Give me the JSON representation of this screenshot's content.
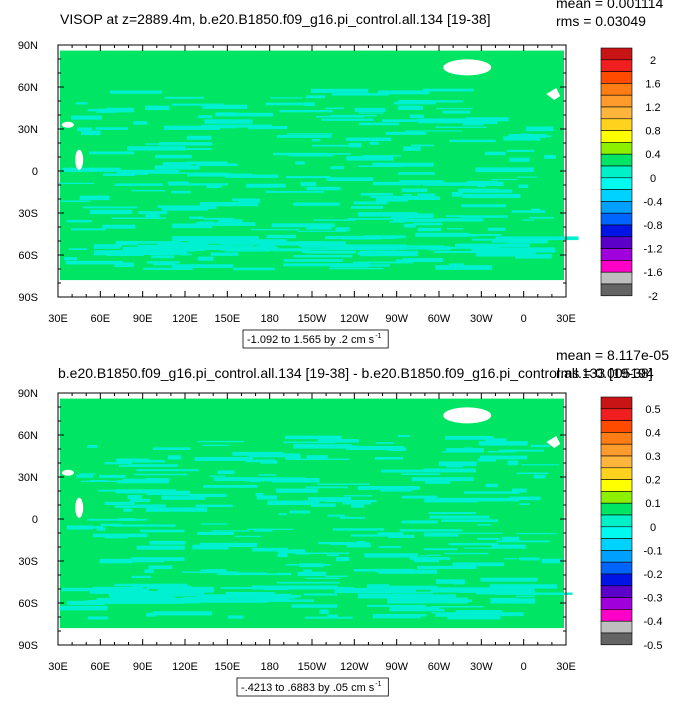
{
  "chart_data": [
    {
      "type": "heatmap",
      "title": "VISOP at z=2889.4m, b.e20.B1850.f09_g16.pi_control.all.134 [19-38]",
      "stats": [
        "mean = 0.001114",
        "rms = 0.03049"
      ],
      "x_ticks": [
        "30E",
        "60E",
        "90E",
        "120E",
        "150E",
        "180",
        "150W",
        "120W",
        "90W",
        "60W",
        "30W",
        "0",
        "30E"
      ],
      "y_ticks": [
        "90N",
        "60N",
        "30N",
        "0",
        "30S",
        "60S",
        "90S"
      ],
      "xlim": [
        30,
        390
      ],
      "ylim": [
        -90,
        90
      ],
      "contour_label": "-1.092 to 1.565 by .2 cm s",
      "contour_unit_exp": "-1",
      "colorbar_labels": [
        "2",
        "1.6",
        "1.2",
        "0.8",
        "0.4",
        "0",
        "-0.4",
        "-0.8",
        "-1.2",
        "-1.6",
        "-2"
      ],
      "colorbar_colors": [
        "#c81414",
        "#f01e1e",
        "#ff4b00",
        "#ff7d14",
        "#ff9b2d",
        "#ffb43c",
        "#ffd21e",
        "#ffff00",
        "#8cf000",
        "#00e664",
        "#00f0c8",
        "#00faf0",
        "#00d2ff",
        "#00a0ff",
        "#0064ff",
        "#0014e6",
        "#5a00c8",
        "#a000dc",
        "#ff00c8",
        "#bebebe",
        "#646464"
      ],
      "field_color": "#00e664",
      "anomaly_color": "#00f0d2"
    },
    {
      "type": "heatmap",
      "title": "b.e20.B1850.f09_g16.pi_control.all.134 [19-38] - b.e20.B1850.f09_g16.pi_control.all.133 [19-38]",
      "stats": [
        "mean = 8.117e-05",
        "rms = 0.005194"
      ],
      "x_ticks": [
        "30E",
        "60E",
        "90E",
        "120E",
        "150E",
        "180",
        "150W",
        "120W",
        "90W",
        "60W",
        "30W",
        "0",
        "30E"
      ],
      "y_ticks": [
        "90N",
        "60N",
        "30N",
        "0",
        "30S",
        "60S",
        "90S"
      ],
      "xlim": [
        30,
        390
      ],
      "ylim": [
        -90,
        90
      ],
      "contour_label": "-.4213 to .6883 by .05 cm s",
      "contour_unit_exp": "-1",
      "colorbar_labels": [
        "0.5",
        "0.4",
        "0.3",
        "0.2",
        "0.1",
        "0",
        "-0.1",
        "-0.2",
        "-0.3",
        "-0.4",
        "-0.5"
      ],
      "colorbar_colors": [
        "#c81414",
        "#f01e1e",
        "#ff4b00",
        "#ff7d14",
        "#ff9b2d",
        "#ffb43c",
        "#ffd21e",
        "#ffff00",
        "#8cf000",
        "#00e664",
        "#00f0c8",
        "#00faf0",
        "#00d2ff",
        "#00a0ff",
        "#0064ff",
        "#0014e6",
        "#5a00c8",
        "#a000dc",
        "#ff00c8",
        "#bebebe",
        "#646464"
      ],
      "field_color": "#00e664",
      "anomaly_color": "#00f0d2"
    }
  ]
}
